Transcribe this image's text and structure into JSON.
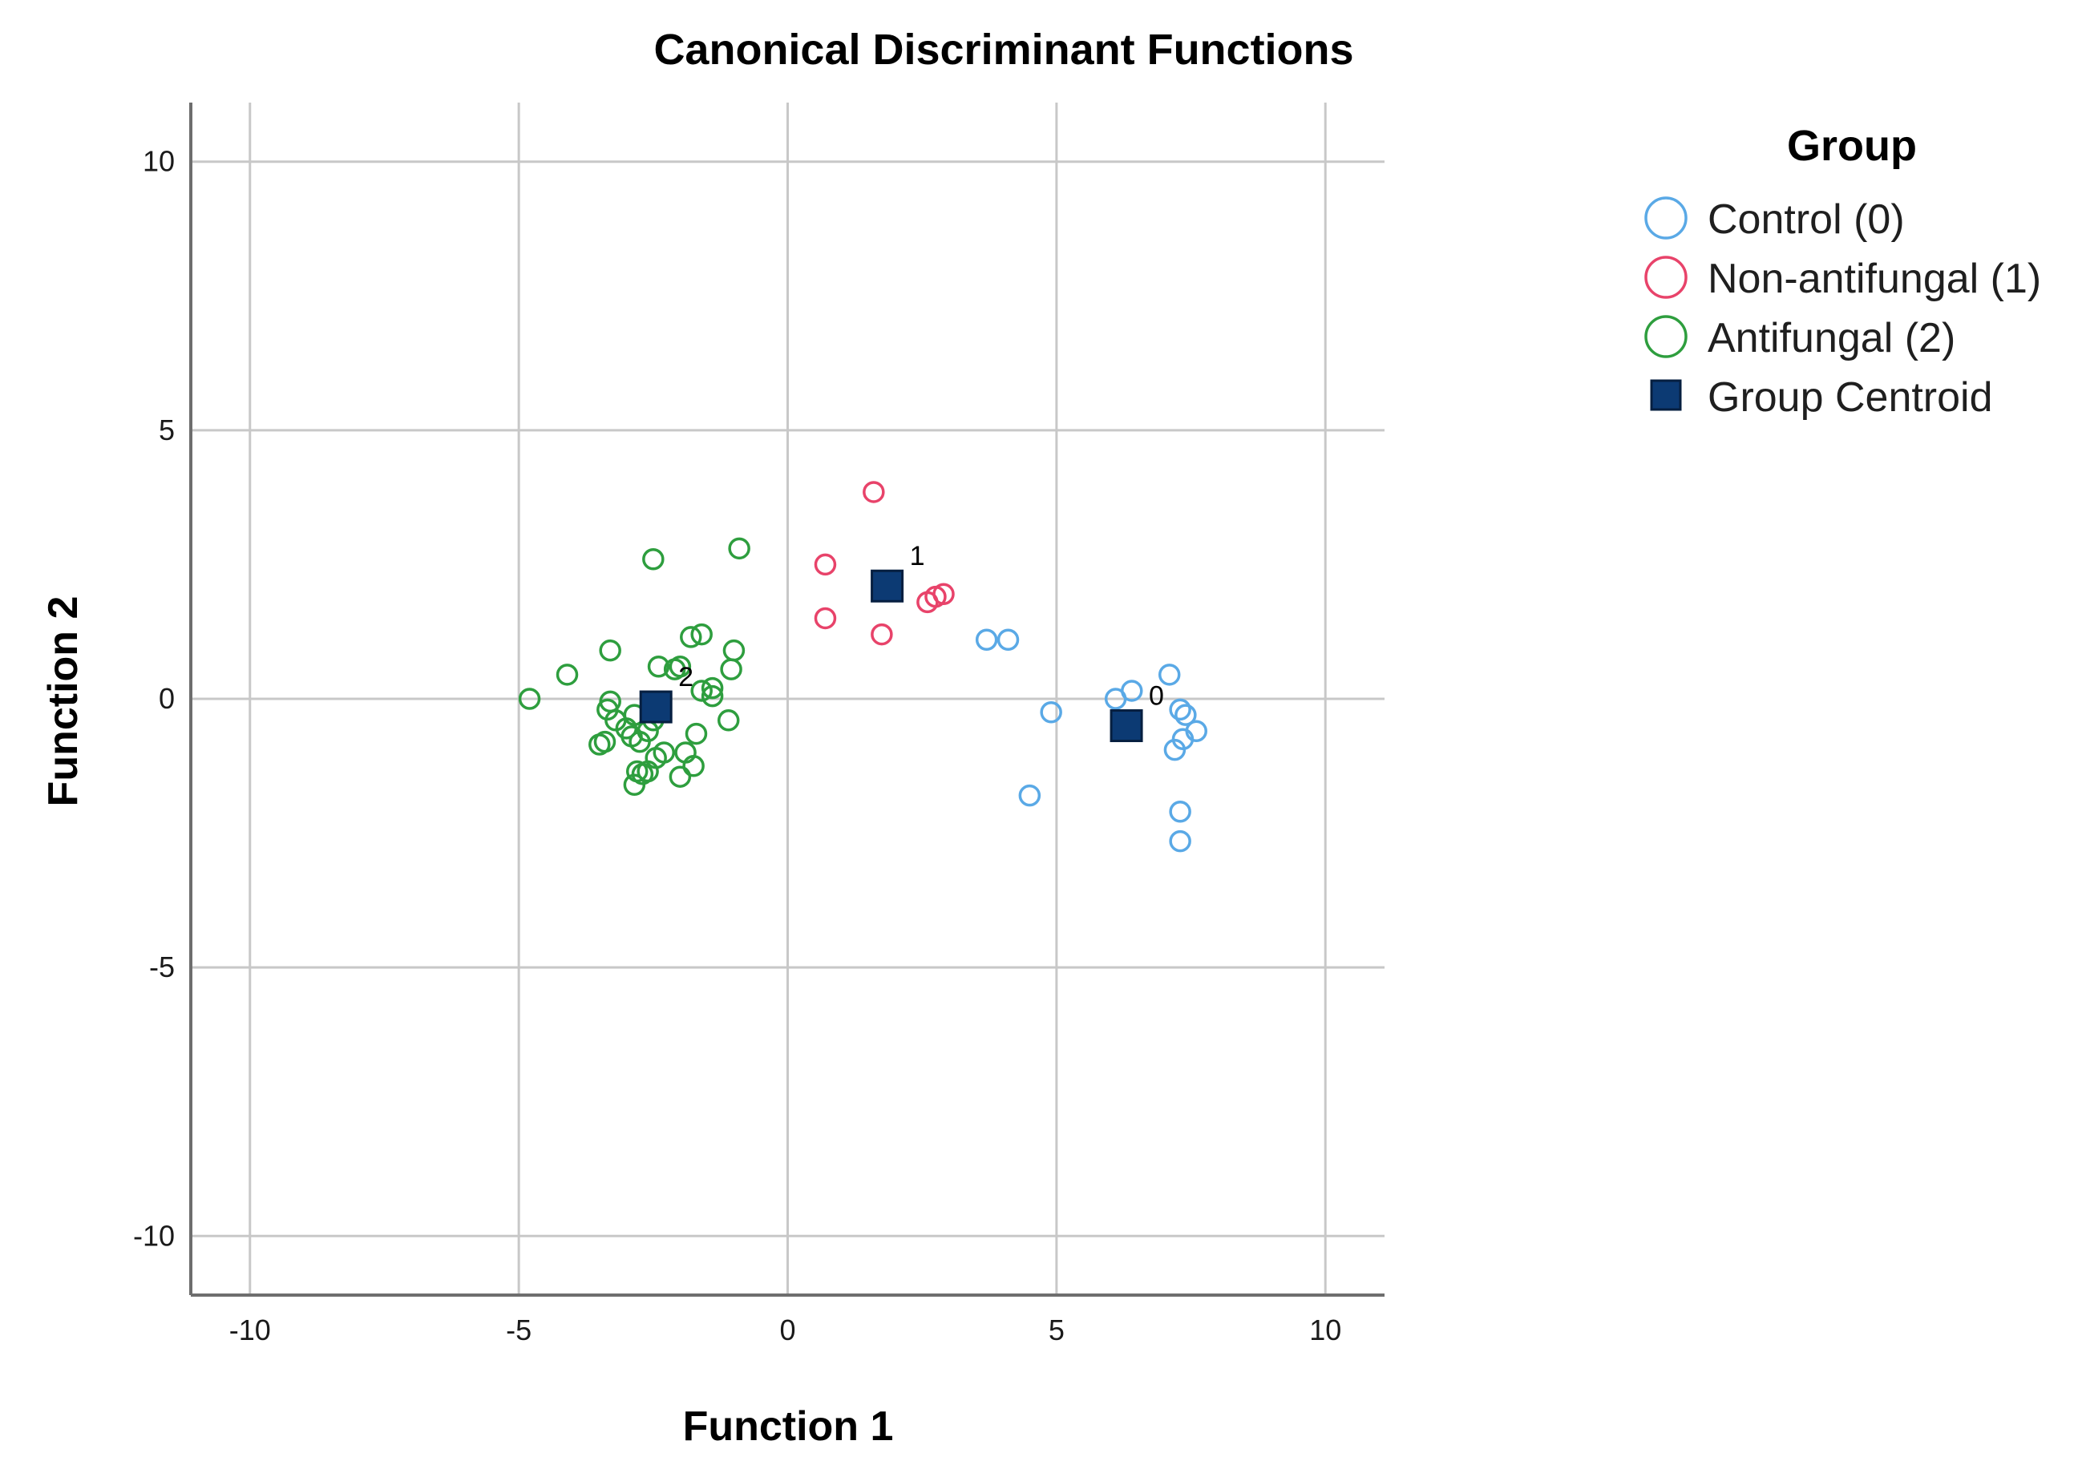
{
  "chart_data": {
    "type": "scatter",
    "title": "Canonical Discriminant Functions",
    "xlabel": "Function 1",
    "ylabel": "Function 2",
    "xlim": [
      -11.1,
      11.1
    ],
    "ylim": [
      -11.1,
      11.1
    ],
    "xticks": [
      -10,
      -5,
      0,
      5,
      10
    ],
    "yticks": [
      -10,
      -5,
      0,
      5,
      10
    ],
    "xtick_labels": [
      "-10",
      "-5",
      "0",
      "5",
      "10"
    ],
    "ytick_labels": [
      "-10",
      "-5",
      "0",
      "5",
      "10"
    ],
    "grid": true,
    "legend": {
      "title": "Group",
      "position": "right",
      "entries": [
        "Control (0)",
        "Non-antifungal (1)",
        "Antifungal (2)",
        "Group Centroid"
      ]
    },
    "colors": {
      "control": "#5aa9e6",
      "non_antifungal": "#e8436a",
      "antifungal": "#2e9e3e",
      "centroid": "#0c3a73"
    },
    "series": [
      {
        "name": "Control (0)",
        "key": "control",
        "points": [
          [
            3.7,
            1.1
          ],
          [
            4.1,
            1.1
          ],
          [
            4.9,
            -0.25
          ],
          [
            4.5,
            -1.8
          ],
          [
            6.1,
            0.0
          ],
          [
            6.4,
            0.15
          ],
          [
            7.1,
            0.45
          ],
          [
            7.3,
            -0.2
          ],
          [
            7.4,
            -0.3
          ],
          [
            7.6,
            -0.6
          ],
          [
            7.35,
            -0.75
          ],
          [
            7.2,
            -0.95
          ],
          [
            7.3,
            -2.1
          ],
          [
            7.3,
            -2.65
          ]
        ]
      },
      {
        "name": "Non-antifungal (1)",
        "key": "non_antifungal",
        "points": [
          [
            1.6,
            3.85
          ],
          [
            0.7,
            2.5
          ],
          [
            0.7,
            1.5
          ],
          [
            1.75,
            1.2
          ],
          [
            2.6,
            1.8
          ],
          [
            2.75,
            1.9
          ],
          [
            2.9,
            1.95
          ]
        ]
      },
      {
        "name": "Antifungal (2)",
        "key": "antifungal",
        "points": [
          [
            -2.5,
            2.6
          ],
          [
            -0.9,
            2.8
          ],
          [
            -4.8,
            0.0
          ],
          [
            -4.1,
            0.45
          ],
          [
            -3.3,
            0.9
          ],
          [
            -2.4,
            0.6
          ],
          [
            -2.1,
            0.55
          ],
          [
            -2.0,
            0.6
          ],
          [
            -1.8,
            1.15
          ],
          [
            -1.6,
            1.2
          ],
          [
            -1.0,
            0.9
          ],
          [
            -1.05,
            0.55
          ],
          [
            -1.4,
            0.2
          ],
          [
            -1.6,
            0.15
          ],
          [
            -1.4,
            0.05
          ],
          [
            -1.1,
            -0.4
          ],
          [
            -1.7,
            -0.65
          ],
          [
            -1.9,
            -1.0
          ],
          [
            -1.75,
            -1.25
          ],
          [
            -2.0,
            -1.45
          ],
          [
            -2.3,
            -1.0
          ],
          [
            -2.45,
            -1.1
          ],
          [
            -2.6,
            -1.35
          ],
          [
            -2.7,
            -1.4
          ],
          [
            -2.85,
            -1.6
          ],
          [
            -2.8,
            -1.35
          ],
          [
            -2.75,
            -0.8
          ],
          [
            -2.6,
            -0.6
          ],
          [
            -2.9,
            -0.7
          ],
          [
            -3.0,
            -0.55
          ],
          [
            -3.2,
            -0.4
          ],
          [
            -3.35,
            -0.2
          ],
          [
            -3.4,
            -0.8
          ],
          [
            -3.5,
            -0.85
          ],
          [
            -3.3,
            -0.05
          ],
          [
            -2.85,
            -0.3
          ],
          [
            -2.5,
            -0.4
          ]
        ]
      }
    ],
    "centroids": [
      {
        "label": "0",
        "x": 6.3,
        "y": -0.5
      },
      {
        "label": "1",
        "x": 1.85,
        "y": 2.1
      },
      {
        "label": "2",
        "x": -2.45,
        "y": -0.15
      }
    ]
  }
}
